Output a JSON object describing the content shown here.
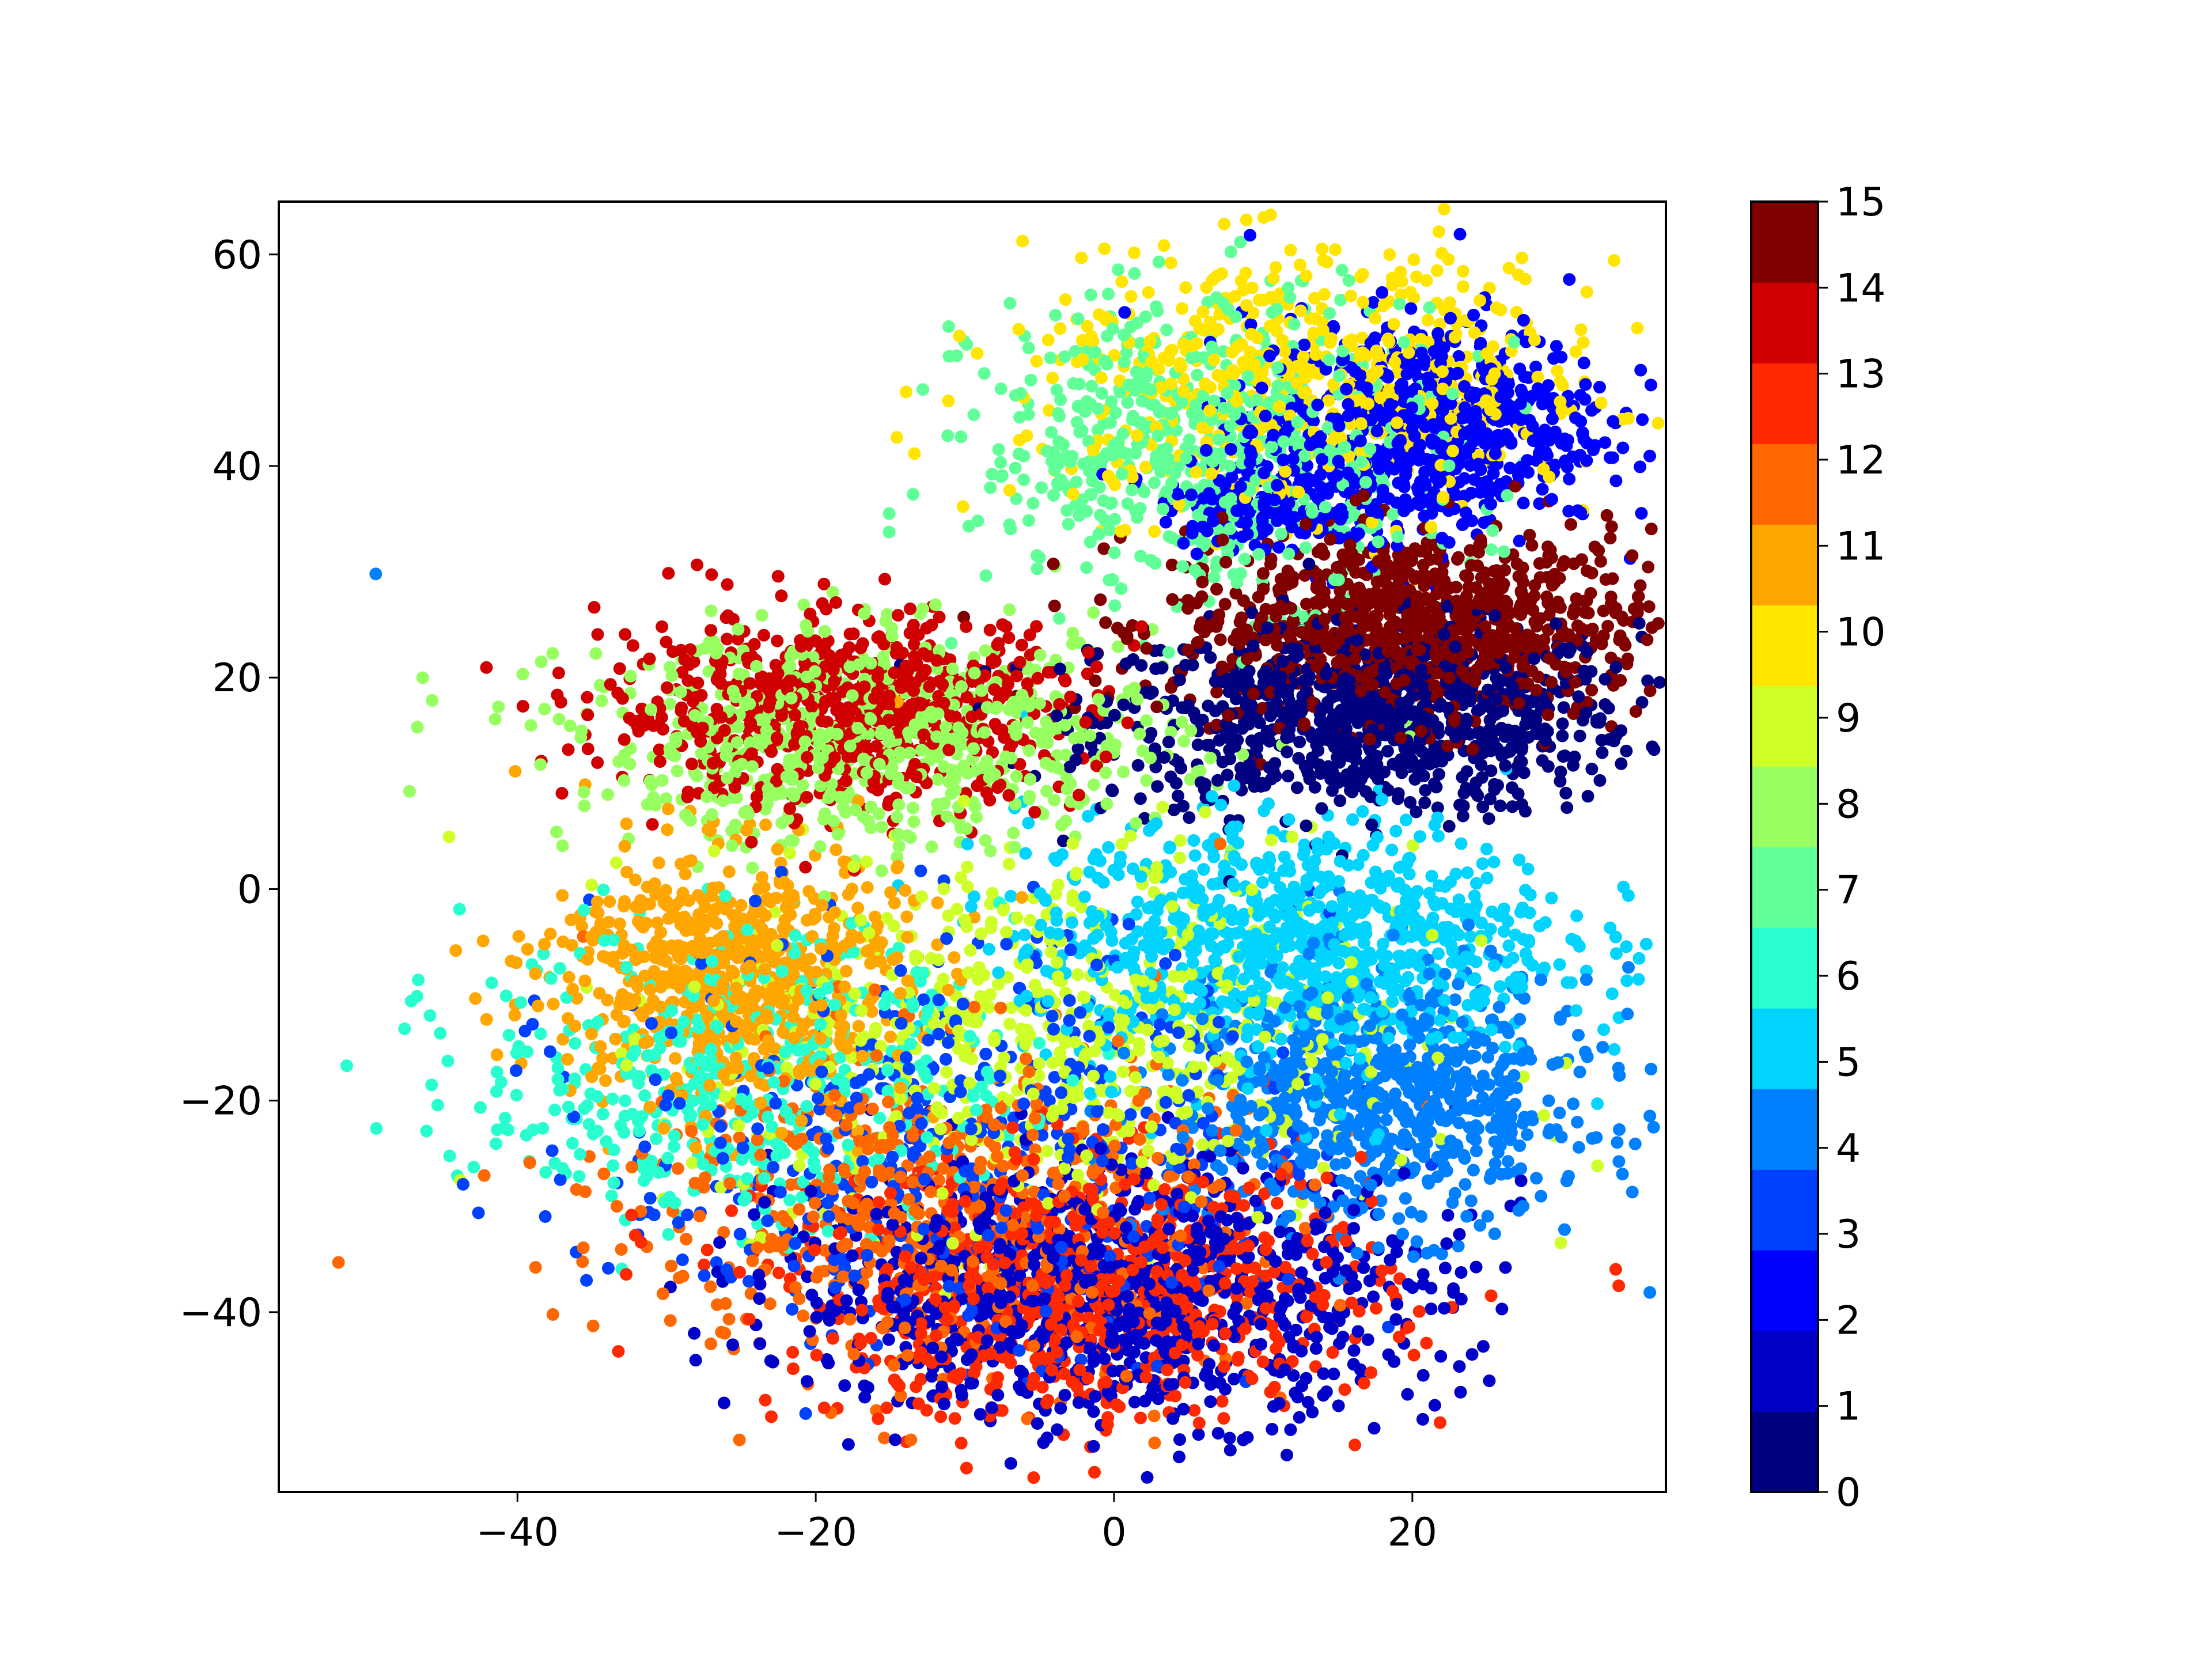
{
  "chart_data": {
    "type": "scatter",
    "title": "",
    "xlabel": "",
    "ylabel": "",
    "xlim": [
      -56,
      37
    ],
    "ylim": [
      -57,
      65
    ],
    "xticks": [
      -40,
      -20,
      0,
      20
    ],
    "xtick_labels": [
      "−40",
      "−20",
      "0",
      "20"
    ],
    "yticks": [
      -40,
      -20,
      0,
      20,
      40,
      60
    ],
    "ytick_labels": [
      "−40",
      "−20",
      "0",
      "20",
      "40",
      "60"
    ],
    "grid": false,
    "legend": "none",
    "colormap": "jet",
    "colorbar": {
      "min": 0,
      "max": 15,
      "ticks": [
        0,
        1,
        2,
        3,
        4,
        5,
        6,
        7,
        8,
        9,
        10,
        11,
        12,
        13,
        14,
        15
      ],
      "tick_labels": [
        "0",
        "1",
        "2",
        "3",
        "4",
        "5",
        "6",
        "7",
        "8",
        "9",
        "10",
        "11",
        "12",
        "13",
        "14",
        "15"
      ],
      "colors": [
        "#000080",
        "#0000c8",
        "#0000ff",
        "#0040ff",
        "#0080ff",
        "#00d4ff",
        "#29ffce",
        "#60ff97",
        "#97ff60",
        "#ceff29",
        "#ffe500",
        "#ffa600",
        "#ff6800",
        "#ff2900",
        "#d00000",
        "#800000"
      ]
    },
    "outliers": [
      {
        "x": -49.5,
        "y": 29.8,
        "class": 4
      },
      {
        "x": -52,
        "y": -35.3,
        "class": 12
      }
    ],
    "clusters": [
      {
        "class": 0,
        "cx": 17,
        "cy": 16,
        "sx": 9,
        "sy": 4.5,
        "n": 900
      },
      {
        "class": 15,
        "cx": 20,
        "cy": 25,
        "sx": 8,
        "sy": 4.5,
        "n": 900
      },
      {
        "class": 2,
        "cx": 21,
        "cy": 44,
        "sx": 6,
        "sy": 5,
        "n": 650
      },
      {
        "class": 2,
        "cx": 11,
        "cy": 37,
        "sx": 4,
        "sy": 2.5,
        "n": 200
      },
      {
        "class": 10,
        "cx": 14,
        "cy": 48,
        "sx": 10,
        "sy": 6,
        "n": 600
      },
      {
        "class": 7,
        "cx": 7,
        "cy": 42,
        "sx": 8,
        "sy": 7,
        "n": 650
      },
      {
        "class": 14,
        "cx": -18,
        "cy": 17,
        "sx": 8,
        "sy": 4.5,
        "n": 700
      },
      {
        "class": 8,
        "cx": -16,
        "cy": 14,
        "sx": 10,
        "sy": 5,
        "n": 700
      },
      {
        "class": 11,
        "cx": -26,
        "cy": -8,
        "sx": 6,
        "sy": 6,
        "n": 700
      },
      {
        "class": 6,
        "cx": -25,
        "cy": -18,
        "sx": 9,
        "sy": 7,
        "n": 500
      },
      {
        "class": 9,
        "cx": -4,
        "cy": -14,
        "sx": 12,
        "sy": 9,
        "n": 650
      },
      {
        "class": 5,
        "cx": 12,
        "cy": -5,
        "sx": 9,
        "sy": 6,
        "n": 900
      },
      {
        "class": 4,
        "cx": 18,
        "cy": -20,
        "sx": 7,
        "sy": 6,
        "n": 750
      },
      {
        "class": 1,
        "cx": 0,
        "cy": -38,
        "sx": 11,
        "sy": 6,
        "n": 1000
      },
      {
        "class": 13,
        "cx": -2,
        "cy": -38,
        "sx": 10,
        "sy": 6,
        "n": 800
      },
      {
        "class": 12,
        "cx": -12,
        "cy": -30,
        "sx": 10,
        "sy": 8,
        "n": 600
      },
      {
        "class": 3,
        "cx": -10,
        "cy": -24,
        "sx": 12,
        "sy": 10,
        "n": 500
      }
    ]
  }
}
